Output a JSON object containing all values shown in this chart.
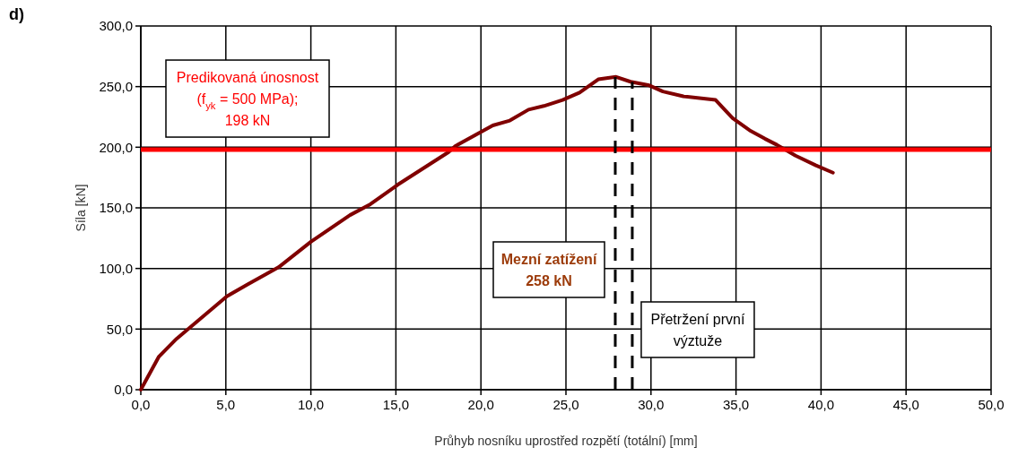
{
  "chart_data": {
    "type": "line",
    "xlabel": "Průhyb nosníku uprostřed rozpětí (totální) [mm]",
    "ylabel": "Síla [kN]",
    "x": [
      0,
      1.05,
      2.1,
      5.06,
      6.3,
      8.1,
      10,
      12.3,
      13.5,
      14.6,
      15.1,
      18.1,
      18.5,
      20.7,
      21.7,
      22.8,
      23.7,
      24.8,
      25.8,
      26.9,
      27.95,
      28.8,
      29.9,
      30.7,
      31.9,
      33.8,
      34.8,
      35.8,
      36.7,
      37.4,
      38.5,
      39.7,
      40.7
    ],
    "series": [
      {
        "color": "#800000",
        "values": [
          0,
          27,
          42,
          77,
          87,
          101,
          122,
          144,
          153,
          164,
          169,
          196,
          201,
          218,
          222,
          231,
          234,
          239,
          245,
          256,
          258,
          254,
          251,
          246,
          242,
          239,
          224,
          214,
          207,
          202,
          193,
          185,
          179
        ]
      }
    ],
    "xlim": [
      0,
      50
    ],
    "ylim": [
      0,
      300
    ],
    "xticks": [
      {
        "value": 0,
        "label": "0,0"
      },
      {
        "value": 5,
        "label": "5,0"
      },
      {
        "value": 10,
        "label": "10,0"
      },
      {
        "value": 15,
        "label": "15,0"
      },
      {
        "value": 20,
        "label": "20,0"
      },
      {
        "value": 25,
        "label": "25,0"
      },
      {
        "value": 30,
        "label": "30,0"
      },
      {
        "value": 35,
        "label": "35,0"
      },
      {
        "value": 40,
        "label": "40,0"
      },
      {
        "value": 45,
        "label": "45,0"
      },
      {
        "value": 50,
        "label": "50,0"
      }
    ],
    "yticks": [
      {
        "value": 0,
        "label": "0,0"
      },
      {
        "value": 50,
        "label": "50,0"
      },
      {
        "value": 100,
        "label": "100,0"
      },
      {
        "value": 150,
        "label": "150,0"
      },
      {
        "value": 200,
        "label": "200,0"
      },
      {
        "value": 250,
        "label": "250,0"
      },
      {
        "value": 300,
        "label": "300,0"
      }
    ],
    "grid": true,
    "marker": "none",
    "line_style": "solid",
    "ref_lines": [
      {
        "axis": "y",
        "value": 198,
        "label": "Predikovaná únosnost\n(f$_{yk}$ = 500 MPa);\n198 kN",
        "color": "#ff0000",
        "line_style": "solid"
      },
      {
        "axis": "x",
        "value": 27.9,
        "color": "#000000",
        "line_style": "dashed"
      },
      {
        "axis": "x",
        "value": 28.9,
        "label": "Přetržení první\nvýztuže",
        "color": "#000000",
        "line_style": "dashed"
      }
    ],
    "annotations": [
      "d)",
      "Mezní zatížení\n258 kN"
    ]
  }
}
